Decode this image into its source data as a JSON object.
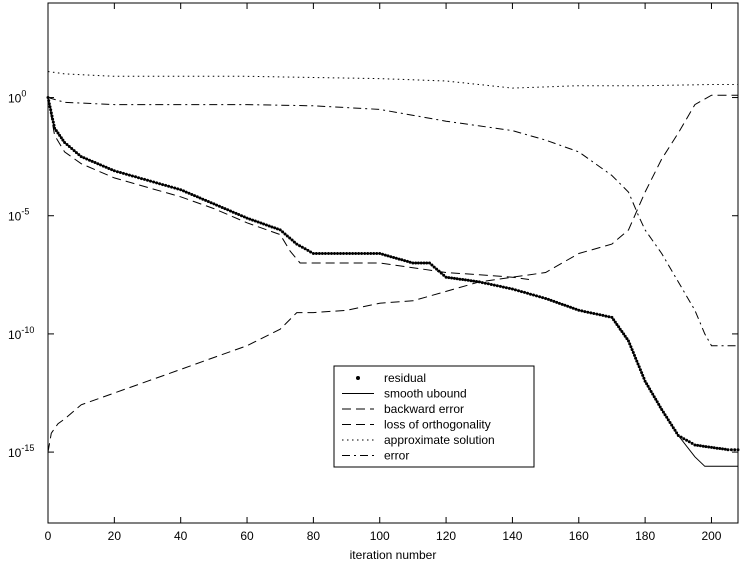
{
  "chart_data": {
    "type": "line",
    "title": "",
    "xlabel": "iteration number",
    "ylabel": "",
    "xlim": [
      0,
      208
    ],
    "yscale": "log",
    "ylim_exp": [
      -18,
      4
    ],
    "xticks": [
      0,
      20,
      40,
      60,
      80,
      100,
      120,
      140,
      160,
      180,
      200
    ],
    "xtick_labels": [
      "0",
      "20",
      "40",
      "60",
      "80",
      "100",
      "120",
      "140",
      "160",
      "180",
      "200"
    ],
    "yticks_exp": [
      0,
      -5,
      -10,
      -15
    ],
    "ytick_labels": [
      {
        "base": "10",
        "exp": "0"
      },
      {
        "base": "10",
        "exp": "-5"
      },
      {
        "base": "10",
        "exp": "-10"
      },
      {
        "base": "10",
        "exp": "-15"
      }
    ],
    "grid": false,
    "legend_placement": "lower-center",
    "series": [
      {
        "name": "residual",
        "style": "dots",
        "x": [
          0,
          2,
          5,
          10,
          20,
          30,
          40,
          50,
          60,
          70,
          75,
          80,
          90,
          100,
          105,
          110,
          115,
          120,
          125,
          130,
          140,
          150,
          160,
          170,
          175,
          180,
          185,
          190,
          195,
          200,
          205,
          208
        ],
        "log10y": [
          0,
          -1.3,
          -1.9,
          -2.5,
          -3.1,
          -3.5,
          -3.9,
          -4.5,
          -5.1,
          -5.6,
          -6.2,
          -6.6,
          -6.6,
          -6.6,
          -6.8,
          -7.0,
          -7.0,
          -7.6,
          -7.7,
          -7.8,
          -8.1,
          -8.5,
          -9.0,
          -9.3,
          -10.3,
          -12.0,
          -13.2,
          -14.3,
          -14.7,
          -14.8,
          -14.9,
          -14.9
        ]
      },
      {
        "name": "smooth ubound",
        "style": "solid",
        "x": [
          0,
          2,
          5,
          10,
          20,
          30,
          40,
          50,
          60,
          70,
          75,
          80,
          90,
          100,
          105,
          110,
          115,
          120,
          125,
          130,
          140,
          150,
          160,
          170,
          175,
          180,
          185,
          190,
          195,
          198,
          200,
          205,
          208
        ],
        "log10y": [
          0,
          -1.3,
          -1.9,
          -2.5,
          -3.1,
          -3.5,
          -3.9,
          -4.5,
          -5.1,
          -5.6,
          -6.2,
          -6.6,
          -6.6,
          -6.6,
          -6.8,
          -7.0,
          -7.0,
          -7.6,
          -7.7,
          -7.8,
          -8.1,
          -8.5,
          -9.0,
          -9.3,
          -10.3,
          -12.0,
          -13.2,
          -14.3,
          -15.2,
          -15.6,
          -15.6,
          -15.6,
          -15.6
        ]
      },
      {
        "name": "backward error",
        "style": "dashed",
        "x": [
          0,
          2,
          5,
          10,
          20,
          30,
          40,
          50,
          60,
          70,
          73,
          76,
          80,
          90,
          100,
          110,
          120,
          130,
          140,
          145
        ],
        "log10y": [
          0,
          -1.6,
          -2.3,
          -2.8,
          -3.4,
          -3.8,
          -4.2,
          -4.7,
          -5.3,
          -5.8,
          -6.5,
          -7.0,
          -7.0,
          -7.0,
          -7.0,
          -7.2,
          -7.4,
          -7.5,
          -7.6,
          -7.7
        ]
      },
      {
        "name": "loss of orthogonality",
        "style": "dashed",
        "x": [
          0,
          1,
          3,
          5,
          10,
          20,
          30,
          40,
          50,
          60,
          70,
          75,
          80,
          90,
          100,
          110,
          120,
          130,
          140,
          150,
          160,
          170,
          175,
          180,
          185,
          190,
          195,
          200,
          208
        ],
        "log10y": [
          -15.0,
          -14.2,
          -13.8,
          -13.6,
          -13.0,
          -12.5,
          -12.0,
          -11.5,
          -11.0,
          -10.5,
          -9.8,
          -9.1,
          -9.1,
          -9.0,
          -8.7,
          -8.6,
          -8.2,
          -7.8,
          -7.6,
          -7.4,
          -6.6,
          -6.2,
          -5.6,
          -4.0,
          -2.6,
          -1.5,
          -0.3,
          0.1,
          0.1
        ]
      },
      {
        "name": "approximate solution",
        "style": "dotted",
        "x": [
          0,
          5,
          20,
          40,
          60,
          80,
          100,
          120,
          140,
          160,
          180,
          200,
          208
        ],
        "log10y": [
          1.1,
          1.0,
          0.9,
          0.9,
          0.9,
          0.85,
          0.8,
          0.7,
          0.4,
          0.5,
          0.5,
          0.55,
          0.55
        ]
      },
      {
        "name": "error",
        "style": "dashdot",
        "x": [
          0,
          5,
          20,
          40,
          60,
          80,
          100,
          120,
          130,
          140,
          150,
          160,
          165,
          170,
          175,
          178,
          180,
          185,
          190,
          195,
          198,
          200,
          208
        ],
        "log10y": [
          0,
          -0.2,
          -0.3,
          -0.3,
          -0.3,
          -0.35,
          -0.5,
          -1.0,
          -1.2,
          -1.4,
          -1.8,
          -2.3,
          -2.8,
          -3.3,
          -4.0,
          -5.0,
          -5.6,
          -6.6,
          -7.8,
          -9.0,
          -10.0,
          -10.5,
          -10.5
        ]
      }
    ]
  }
}
